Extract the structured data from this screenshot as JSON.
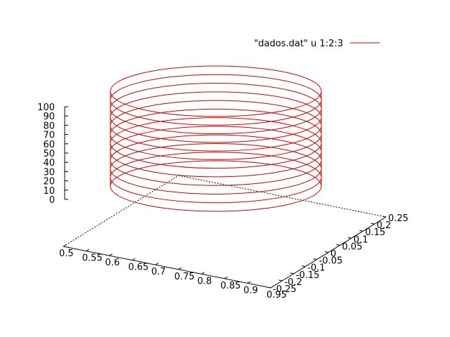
{
  "chart_data": {
    "type": "line",
    "mode": "3d-helix",
    "legend": {
      "entries": [
        "\"dados.dat\" u 1:2:3"
      ],
      "placement": "top-right"
    },
    "series": [
      {
        "name": "\"dados.dat\" u 1:2:3",
        "color": "#cc0000",
        "center": [
          0.75,
          0.0
        ],
        "radius": 0.25,
        "z_range": [
          15,
          100
        ],
        "turns": 12
      }
    ],
    "axes": {
      "x": {
        "range": [
          0.5,
          0.95
        ],
        "ticks": [
          "0.5",
          "0.55",
          "0.6",
          "0.65",
          "0.7",
          "0.75",
          "0.8",
          "0.85",
          "0.9",
          "0.95"
        ]
      },
      "y": {
        "range": [
          -0.25,
          0.25
        ],
        "ticks": [
          "-0.25",
          "-0.2",
          "-0.15",
          "-0.1",
          "-0.05",
          "0",
          "0.05",
          "0.1",
          "0.15",
          "0.2",
          "0.25"
        ]
      },
      "z": {
        "range": [
          0,
          100
        ],
        "ticks": [
          "0",
          "10",
          "20",
          "30",
          "40",
          "50",
          "60",
          "70",
          "80",
          "90",
          "100"
        ]
      }
    },
    "grid": false
  }
}
